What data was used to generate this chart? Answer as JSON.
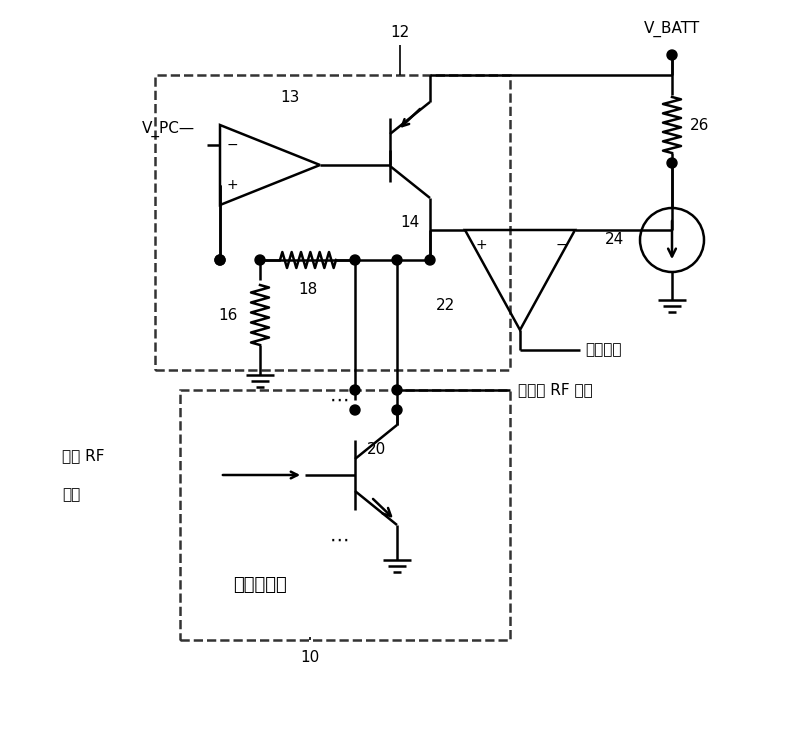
{
  "bg_color": "#ffffff",
  "line_color": "#000000",
  "line_width": 1.8,
  "labels": {
    "v_batt": "V_BATT",
    "v_pc": "V_PC—",
    "label_12": "12",
    "label_13": "13",
    "label_14": "14",
    "label_16": "16",
    "label_18": "18",
    "label_20": "20",
    "label_22": "22",
    "label_24": "24",
    "label_26": "26",
    "label_10": "10",
    "sat_detect": "饱和检测",
    "rf_in_line1": "输入 RF",
    "rf_in_line2": "信号",
    "rf_out_label": "放大的 RF 信号",
    "pa_label": "功率放大器"
  },
  "font_size": 11
}
